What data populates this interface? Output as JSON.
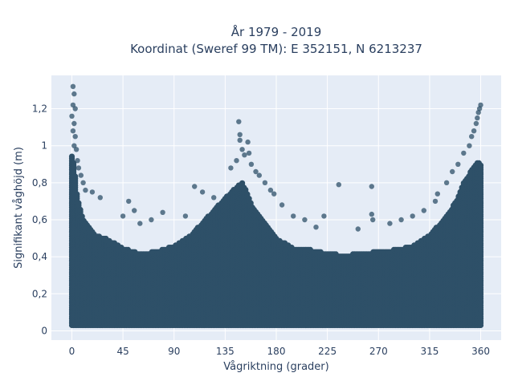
{
  "chart_data": {
    "type": "scatter",
    "title_line1": "År 1979 - 2019",
    "title_line2": "Koordinat (Sweref 99 TM): E 352151, N 6213237",
    "xlabel": "Vågriktning (grader)",
    "ylabel": "Signifikant våghöjd (m)",
    "xlim": [
      -18,
      378
    ],
    "ylim": [
      -0.05,
      1.38
    ],
    "x_ticks": [
      0,
      45,
      90,
      135,
      180,
      225,
      270,
      315,
      360
    ],
    "x_tick_labels": [
      "0",
      "45",
      "90",
      "135",
      "180",
      "225",
      "270",
      "315",
      "360"
    ],
    "y_ticks": [
      0,
      0.2,
      0.4,
      0.6,
      0.8,
      1,
      1.2
    ],
    "y_tick_labels": [
      "0",
      "0,2",
      "0,4",
      "0,6",
      "0,8",
      "1",
      "1,2"
    ],
    "grid": true,
    "marker_color": "#2e5068",
    "plot_background": "#e5ecf6",
    "envelope": {
      "x": [
        0,
        2,
        5,
        10,
        20,
        30,
        45,
        60,
        75,
        90,
        105,
        120,
        135,
        145,
        150,
        155,
        160,
        170,
        180,
        195,
        210,
        225,
        240,
        255,
        270,
        285,
        300,
        315,
        330,
        340,
        345,
        350,
        355,
        358,
        360
      ],
      "y_max": [
        0.95,
        0.9,
        0.72,
        0.6,
        0.52,
        0.5,
        0.45,
        0.42,
        0.43,
        0.46,
        0.52,
        0.62,
        0.72,
        0.78,
        0.8,
        0.74,
        0.66,
        0.58,
        0.5,
        0.45,
        0.44,
        0.42,
        0.41,
        0.42,
        0.43,
        0.44,
        0.46,
        0.52,
        0.62,
        0.72,
        0.8,
        0.85,
        0.9,
        0.92,
        0.9
      ],
      "y_min": 0.03
    },
    "outliers": [
      {
        "x": 1,
        "y": 1.32
      },
      {
        "x": 2,
        "y": 1.28
      },
      {
        "x": 1,
        "y": 1.22
      },
      {
        "x": 3,
        "y": 1.2
      },
      {
        "x": 0,
        "y": 1.16
      },
      {
        "x": 2,
        "y": 1.12
      },
      {
        "x": 1,
        "y": 1.08
      },
      {
        "x": 3,
        "y": 1.05
      },
      {
        "x": 2,
        "y": 1.0
      },
      {
        "x": 4,
        "y": 0.98
      },
      {
        "x": 5,
        "y": 0.92
      },
      {
        "x": 6,
        "y": 0.88
      },
      {
        "x": 8,
        "y": 0.84
      },
      {
        "x": 10,
        "y": 0.8
      },
      {
        "x": 12,
        "y": 0.76
      },
      {
        "x": 18,
        "y": 0.75
      },
      {
        "x": 25,
        "y": 0.72
      },
      {
        "x": 50,
        "y": 0.7
      },
      {
        "x": 55,
        "y": 0.65
      },
      {
        "x": 45,
        "y": 0.62
      },
      {
        "x": 60,
        "y": 0.58
      },
      {
        "x": 70,
        "y": 0.6
      },
      {
        "x": 80,
        "y": 0.64
      },
      {
        "x": 100,
        "y": 0.62
      },
      {
        "x": 108,
        "y": 0.78
      },
      {
        "x": 115,
        "y": 0.75
      },
      {
        "x": 125,
        "y": 0.72
      },
      {
        "x": 140,
        "y": 0.88
      },
      {
        "x": 145,
        "y": 0.92
      },
      {
        "x": 147,
        "y": 1.13
      },
      {
        "x": 148,
        "y": 1.06
      },
      {
        "x": 148,
        "y": 1.03
      },
      {
        "x": 150,
        "y": 0.98
      },
      {
        "x": 152,
        "y": 0.95
      },
      {
        "x": 155,
        "y": 1.02
      },
      {
        "x": 156,
        "y": 0.96
      },
      {
        "x": 158,
        "y": 0.9
      },
      {
        "x": 162,
        "y": 0.86
      },
      {
        "x": 165,
        "y": 0.84
      },
      {
        "x": 170,
        "y": 0.8
      },
      {
        "x": 175,
        "y": 0.76
      },
      {
        "x": 178,
        "y": 0.74
      },
      {
        "x": 185,
        "y": 0.68
      },
      {
        "x": 195,
        "y": 0.62
      },
      {
        "x": 205,
        "y": 0.6
      },
      {
        "x": 215,
        "y": 0.56
      },
      {
        "x": 222,
        "y": 0.62
      },
      {
        "x": 235,
        "y": 0.79
      },
      {
        "x": 252,
        "y": 0.55
      },
      {
        "x": 264,
        "y": 0.63
      },
      {
        "x": 265,
        "y": 0.6
      },
      {
        "x": 264,
        "y": 0.78
      },
      {
        "x": 280,
        "y": 0.58
      },
      {
        "x": 290,
        "y": 0.6
      },
      {
        "x": 300,
        "y": 0.62
      },
      {
        "x": 310,
        "y": 0.65
      },
      {
        "x": 320,
        "y": 0.7
      },
      {
        "x": 322,
        "y": 0.74
      },
      {
        "x": 330,
        "y": 0.8
      },
      {
        "x": 335,
        "y": 0.86
      },
      {
        "x": 340,
        "y": 0.9
      },
      {
        "x": 345,
        "y": 0.96
      },
      {
        "x": 350,
        "y": 1.0
      },
      {
        "x": 352,
        "y": 1.05
      },
      {
        "x": 354,
        "y": 1.08
      },
      {
        "x": 356,
        "y": 1.12
      },
      {
        "x": 357,
        "y": 1.15
      },
      {
        "x": 358,
        "y": 1.18
      },
      {
        "x": 359,
        "y": 1.2
      },
      {
        "x": 360,
        "y": 1.22
      }
    ]
  }
}
